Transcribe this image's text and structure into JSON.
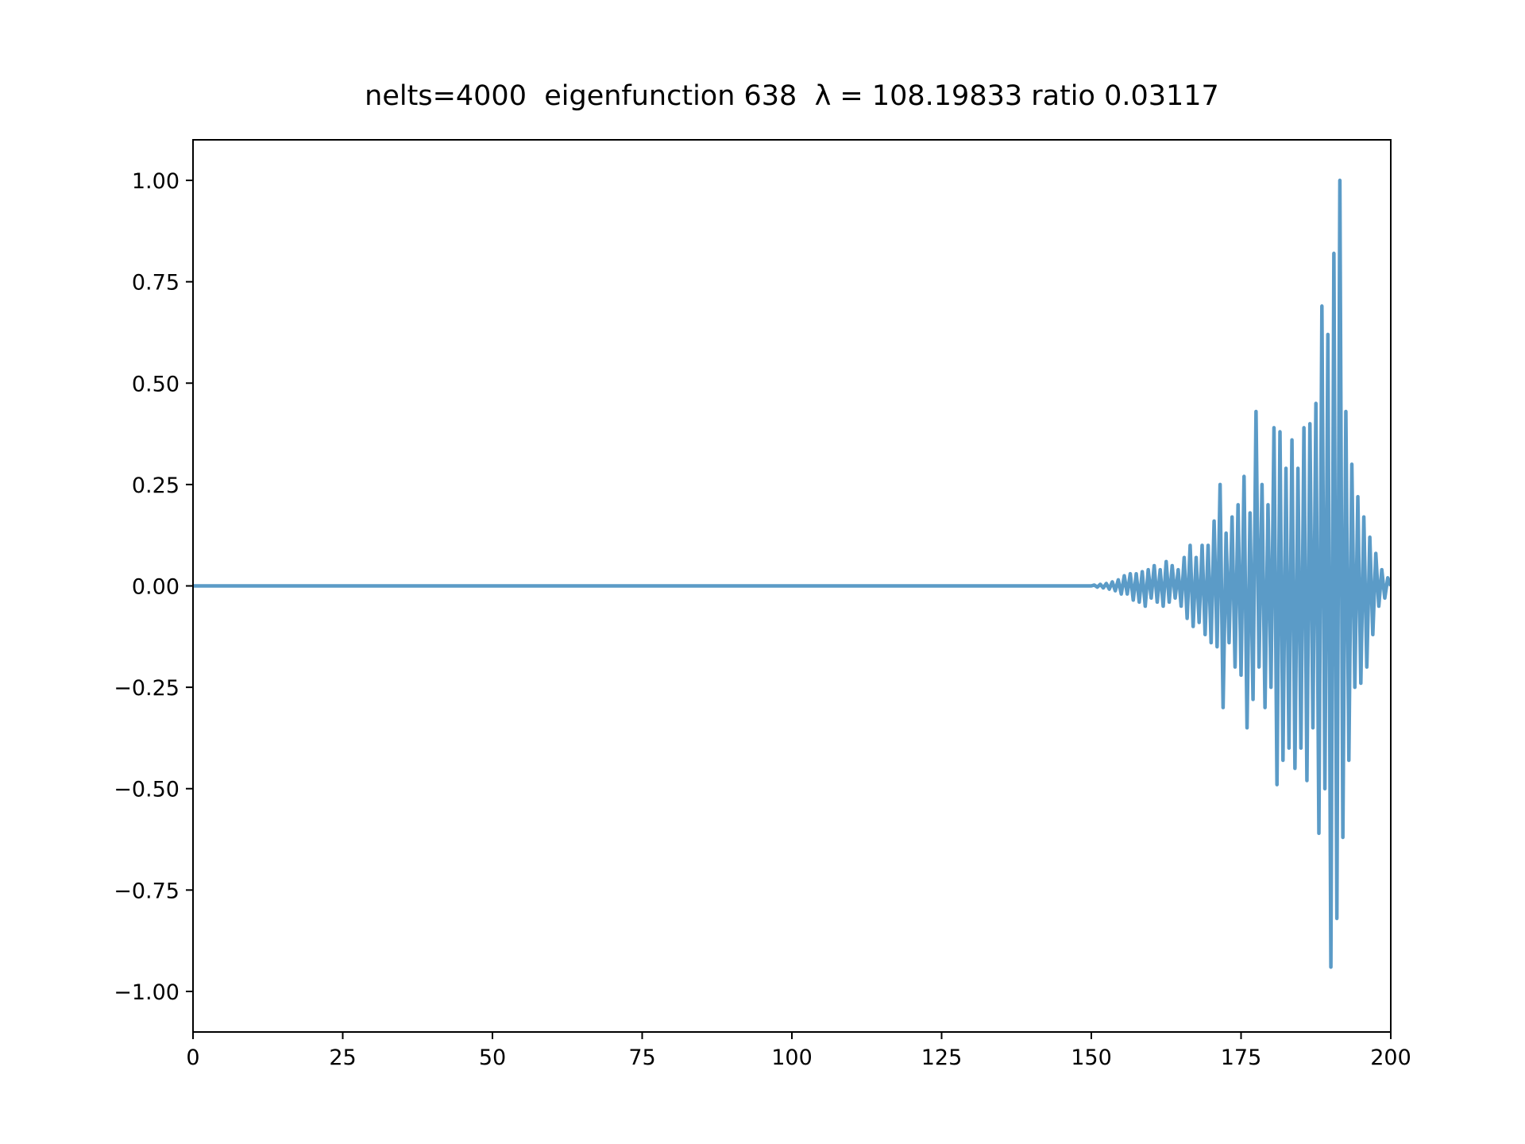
{
  "chart_data": {
    "type": "line",
    "title": "nelts=4000  eigenfunction 638  λ = 108.19833 ratio 0.03117",
    "x": [
      0,
      100,
      150,
      150.5,
      151,
      151.5,
      152,
      152.5,
      153,
      153.5,
      154,
      154.5,
      155,
      155.5,
      156,
      156.5,
      157,
      157.5,
      158,
      158.5,
      159,
      159.5,
      160,
      160.5,
      161,
      161.5,
      162,
      162.5,
      163,
      163.5,
      164,
      164.5,
      165,
      165.5,
      166,
      166.5,
      167,
      167.5,
      168,
      168.5,
      169,
      169.5,
      170,
      170.5,
      171,
      171.5,
      172,
      172.5,
      173,
      173.5,
      174,
      174.5,
      175,
      175.5,
      176,
      176.5,
      177,
      177.5,
      178,
      178.5,
      179,
      179.5,
      180,
      180.5,
      181,
      181.5,
      182,
      182.5,
      183,
      183.5,
      184,
      184.5,
      185,
      185.5,
      186,
      186.5,
      187,
      187.5,
      188,
      188.5,
      189,
      189.5,
      190,
      190.5,
      191,
      191.5,
      192,
      192.5,
      193,
      193.5,
      194,
      194.5,
      195,
      195.5,
      196,
      196.5,
      197,
      197.5,
      198,
      198.5,
      199,
      199.5,
      200
    ],
    "series": [
      {
        "color": "#5b9bc7",
        "values": [
          0,
          0,
          0,
          0.002,
          -0.003,
          0.004,
          -0.005,
          0.006,
          -0.008,
          0.01,
          -0.012,
          0.015,
          -0.02,
          0.025,
          -0.02,
          0.03,
          -0.035,
          0.03,
          -0.04,
          0.035,
          -0.05,
          0.04,
          -0.03,
          0.05,
          -0.04,
          0.04,
          -0.05,
          0.06,
          -0.04,
          0.05,
          -0.03,
          0.04,
          -0.05,
          0.07,
          -0.08,
          0.1,
          -0.1,
          0.07,
          -0.09,
          0.1,
          -0.12,
          0.1,
          -0.14,
          0.16,
          -0.15,
          0.25,
          -0.3,
          0.13,
          -0.14,
          0.17,
          -0.2,
          0.2,
          -0.22,
          0.27,
          -0.35,
          0.18,
          -0.28,
          0.43,
          -0.2,
          0.25,
          -0.3,
          0.2,
          -0.25,
          0.39,
          -0.49,
          0.38,
          -0.43,
          0.29,
          -0.4,
          0.36,
          -0.45,
          0.29,
          -0.4,
          0.39,
          -0.48,
          0.4,
          -0.35,
          0.45,
          -0.61,
          0.69,
          -0.5,
          0.62,
          -0.94,
          0.82,
          -0.82,
          1.0,
          -0.62,
          0.43,
          -0.43,
          0.3,
          -0.25,
          0.22,
          -0.24,
          0.17,
          -0.2,
          0.12,
          -0.12,
          0.08,
          -0.05,
          0.04,
          -0.03,
          0.02,
          0
        ]
      }
    ],
    "xlim": [
      0,
      200
    ],
    "xticks": [
      0,
      25,
      50,
      75,
      100,
      125,
      150,
      175,
      200
    ],
    "ylim": [
      -1.1,
      1.1
    ],
    "yticks": [
      {
        "value": -1,
        "label": "−1.00"
      },
      {
        "value": -0.75,
        "label": "−0.75"
      },
      {
        "value": -0.5,
        "label": "−0.50"
      },
      {
        "value": -0.25,
        "label": "−0.25"
      },
      {
        "value": 0,
        "label": "0.00"
      },
      {
        "value": 0.25,
        "label": "0.25"
      },
      {
        "value": 0.5,
        "label": "0.50"
      },
      {
        "value": 0.75,
        "label": "0.75"
      },
      {
        "value": 1,
        "label": "1.00"
      }
    ],
    "grid": false
  }
}
